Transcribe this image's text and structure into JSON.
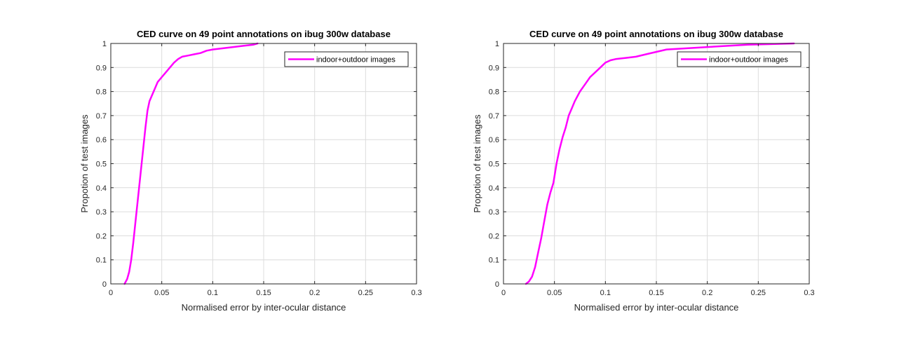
{
  "chart_data": [
    {
      "type": "line",
      "title": "CED curve on 49 point annotations on ibug 300w database",
      "xlabel": "Normalised error by inter-ocular distance",
      "ylabel": "Propotion of test images",
      "xlim": [
        0,
        0.3
      ],
      "ylim": [
        0,
        1
      ],
      "xticks": [
        0,
        0.05,
        0.1,
        0.15,
        0.2,
        0.25,
        0.3
      ],
      "xtick_labels": [
        "0",
        "0.05",
        "0.1",
        "0.15",
        "0.2",
        "0.25",
        "0.3"
      ],
      "yticks": [
        0,
        0.1,
        0.2,
        0.3,
        0.4,
        0.5,
        0.6,
        0.7,
        0.8,
        0.9,
        1
      ],
      "ytick_labels": [
        "0",
        "0.1",
        "0.2",
        "0.3",
        "0.4",
        "0.5",
        "0.6",
        "0.7",
        "0.8",
        "0.9",
        "1"
      ],
      "grid": true,
      "legend_position": "top-right",
      "series": [
        {
          "name": "indoor+outdoor images",
          "color": "#ff00ff",
          "x": [
            0.0135,
            0.016,
            0.018,
            0.02,
            0.022,
            0.024,
            0.026,
            0.028,
            0.03,
            0.032,
            0.034,
            0.036,
            0.038,
            0.04,
            0.043,
            0.046,
            0.05,
            0.054,
            0.058,
            0.062,
            0.066,
            0.07,
            0.076,
            0.082,
            0.088,
            0.094,
            0.1,
            0.11,
            0.12,
            0.13,
            0.14,
            0.144
          ],
          "y": [
            0.0,
            0.02,
            0.05,
            0.1,
            0.17,
            0.25,
            0.33,
            0.41,
            0.49,
            0.57,
            0.65,
            0.72,
            0.76,
            0.78,
            0.81,
            0.84,
            0.86,
            0.88,
            0.9,
            0.92,
            0.935,
            0.945,
            0.95,
            0.955,
            0.96,
            0.97,
            0.975,
            0.98,
            0.985,
            0.99,
            0.995,
            1.0
          ]
        }
      ]
    },
    {
      "type": "line",
      "title": "CED curve on 49 point annotations on ibug 300w database",
      "xlabel": "Normalised error by inter-ocular distance",
      "ylabel": "Propotion of test images",
      "xlim": [
        0,
        0.3
      ],
      "ylim": [
        0,
        1
      ],
      "xticks": [
        0,
        0.05,
        0.1,
        0.15,
        0.2,
        0.25,
        0.3
      ],
      "xtick_labels": [
        "0",
        "0.05",
        "0.1",
        "0.15",
        "0.2",
        "0.25",
        "0.3"
      ],
      "yticks": [
        0,
        0.1,
        0.2,
        0.3,
        0.4,
        0.5,
        0.6,
        0.7,
        0.8,
        0.9,
        1
      ],
      "ytick_labels": [
        "0",
        "0.1",
        "0.2",
        "0.3",
        "0.4",
        "0.5",
        "0.6",
        "0.7",
        "0.8",
        "0.9",
        "1"
      ],
      "grid": true,
      "legend_position": "top-right",
      "series": [
        {
          "name": "indoor+outdoor images",
          "color": "#ff00ff",
          "x": [
            0.022,
            0.025,
            0.028,
            0.031,
            0.034,
            0.037,
            0.04,
            0.043,
            0.046,
            0.049,
            0.052,
            0.055,
            0.058,
            0.061,
            0.064,
            0.067,
            0.07,
            0.075,
            0.08,
            0.085,
            0.09,
            0.095,
            0.1,
            0.105,
            0.11,
            0.12,
            0.13,
            0.14,
            0.15,
            0.16,
            0.18,
            0.2,
            0.22,
            0.24,
            0.26,
            0.285
          ],
          "y": [
            0.0,
            0.01,
            0.03,
            0.07,
            0.13,
            0.19,
            0.26,
            0.33,
            0.38,
            0.42,
            0.5,
            0.56,
            0.61,
            0.65,
            0.7,
            0.73,
            0.76,
            0.8,
            0.83,
            0.86,
            0.88,
            0.9,
            0.92,
            0.93,
            0.935,
            0.94,
            0.945,
            0.955,
            0.965,
            0.975,
            0.98,
            0.985,
            0.99,
            0.995,
            0.997,
            1.0
          ]
        }
      ]
    }
  ]
}
